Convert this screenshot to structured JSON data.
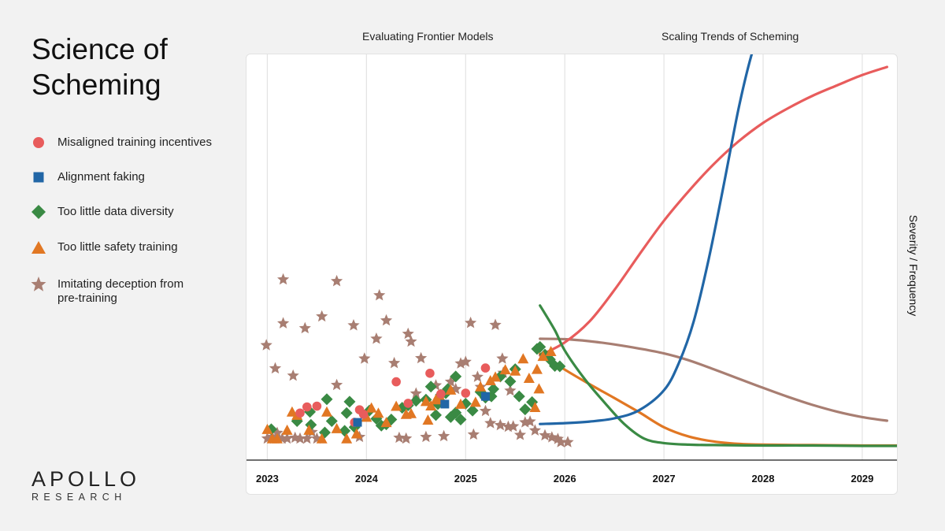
{
  "title": "Science of Scheming",
  "sections": {
    "left_title": "Evaluating Frontier Models",
    "right_title": "Scaling Trends of Scheming"
  },
  "logo": {
    "main": "APOLLO",
    "sub": "RESEARCH"
  },
  "legend": [
    {
      "label": "Misaligned training incentives",
      "shape": "circle",
      "color": "#e85c5c"
    },
    {
      "label": "Alignment faking",
      "shape": "square",
      "color": "#2166a6"
    },
    {
      "label": "Too little data diversity",
      "shape": "diamond",
      "color": "#3a8a44"
    },
    {
      "label": "Too little safety training",
      "shape": "triangle",
      "color": "#e17723"
    },
    {
      "label": "Imitating deception from pre-training",
      "shape": "star",
      "color": "#a87e72"
    }
  ],
  "chart_data": {
    "type": "scatter+line",
    "title": "",
    "xlabel": "",
    "ylabel": "Severity / Frequency",
    "xlim": [
      2022.79,
      2029.35
    ],
    "ylim": [
      0,
      100
    ],
    "grid": true,
    "x_ticks": [
      "2023",
      "2024",
      "2025",
      "2026",
      "2027",
      "2028",
      "2029"
    ],
    "scatter_series": [
      {
        "name": "Misaligned training incentives",
        "marker": "circle",
        "color": "#e85c5c",
        "points": [
          [
            2023.33,
            11.6
          ],
          [
            2023.4,
            13.1
          ],
          [
            2023.5,
            13.3
          ],
          [
            2023.88,
            9.3
          ],
          [
            2023.93,
            12.4
          ],
          [
            2023.97,
            11.3
          ],
          [
            2024.3,
            19.3
          ],
          [
            2024.42,
            14.0
          ],
          [
            2024.64,
            21.4
          ],
          [
            2024.75,
            16.3
          ],
          [
            2025.0,
            16.5
          ],
          [
            2025.2,
            22.7
          ]
        ]
      },
      {
        "name": "Alignment faking",
        "marker": "square",
        "color": "#2166a6",
        "points": [
          [
            2023.91,
            9.3
          ],
          [
            2024.79,
            13.8
          ],
          [
            2025.2,
            15.7
          ]
        ]
      },
      {
        "name": "Too little data diversity",
        "marker": "diamond",
        "color": "#3a8a44",
        "points": [
          [
            2023.04,
            7.6
          ],
          [
            2023.3,
            9.6
          ],
          [
            2023.43,
            11.9
          ],
          [
            2023.44,
            8.7
          ],
          [
            2023.58,
            6.8
          ],
          [
            2023.6,
            15.0
          ],
          [
            2023.65,
            9.6
          ],
          [
            2023.78,
            7.2
          ],
          [
            2023.8,
            11.6
          ],
          [
            2023.83,
            14.4
          ],
          [
            2023.88,
            8.1
          ],
          [
            2024.03,
            12.2
          ],
          [
            2024.1,
            10.2
          ],
          [
            2024.15,
            8.5
          ],
          [
            2024.2,
            8.8
          ],
          [
            2024.25,
            10.0
          ],
          [
            2024.36,
            12.9
          ],
          [
            2024.42,
            13.5
          ],
          [
            2024.5,
            14.6
          ],
          [
            2024.6,
            14.9
          ],
          [
            2024.65,
            18.1
          ],
          [
            2024.7,
            11.1
          ],
          [
            2024.72,
            13.8
          ],
          [
            2024.75,
            16.1
          ],
          [
            2024.8,
            16.5
          ],
          [
            2024.85,
            10.6
          ],
          [
            2024.9,
            11.7
          ],
          [
            2024.95,
            10.0
          ],
          [
            2025.0,
            13.9
          ],
          [
            2025.07,
            12.2
          ],
          [
            2025.15,
            16.8
          ],
          [
            2025.2,
            15.4
          ],
          [
            2025.26,
            15.7
          ],
          [
            2025.28,
            17.5
          ],
          [
            2025.35,
            20.6
          ],
          [
            2025.45,
            19.4
          ],
          [
            2025.54,
            15.7
          ],
          [
            2025.5,
            22.4
          ],
          [
            2025.6,
            12.5
          ],
          [
            2025.67,
            14.3
          ],
          [
            2025.72,
            27.4
          ],
          [
            2025.75,
            27.9
          ],
          [
            2025.8,
            26.0
          ],
          [
            2025.85,
            24.8
          ],
          [
            2025.9,
            23.2
          ],
          [
            2025.95,
            23.1
          ],
          [
            2024.9,
            20.6
          ],
          [
            2024.82,
            17.5
          ]
        ]
      },
      {
        "name": "Too little safety training",
        "marker": "triangle",
        "color": "#e17723",
        "points": [
          [
            2023.0,
            7.6
          ],
          [
            2023.05,
            5.3
          ],
          [
            2023.1,
            5.3
          ],
          [
            2023.2,
            7.4
          ],
          [
            2023.25,
            11.9
          ],
          [
            2023.3,
            11.1
          ],
          [
            2023.42,
            7.4
          ],
          [
            2023.55,
            5.3
          ],
          [
            2023.6,
            11.9
          ],
          [
            2023.7,
            7.8
          ],
          [
            2023.8,
            5.3
          ],
          [
            2023.9,
            6.5
          ],
          [
            2024.0,
            10.6
          ],
          [
            2024.05,
            12.9
          ],
          [
            2024.12,
            11.6
          ],
          [
            2024.2,
            9.3
          ],
          [
            2024.3,
            13.3
          ],
          [
            2024.4,
            11.3
          ],
          [
            2024.45,
            11.5
          ],
          [
            2024.6,
            14.5
          ],
          [
            2024.62,
            9.9
          ],
          [
            2024.65,
            13.4
          ],
          [
            2024.7,
            14.9
          ],
          [
            2024.75,
            15.3
          ],
          [
            2024.85,
            17.3
          ],
          [
            2024.95,
            13.8
          ],
          [
            2025.1,
            14.3
          ],
          [
            2025.15,
            18.1
          ],
          [
            2025.25,
            19.6
          ],
          [
            2025.3,
            20.5
          ],
          [
            2025.4,
            22.3
          ],
          [
            2025.5,
            22.0
          ],
          [
            2025.58,
            25.0
          ],
          [
            2025.64,
            20.2
          ],
          [
            2025.72,
            22.4
          ],
          [
            2025.78,
            25.6
          ],
          [
            2025.86,
            26.8
          ],
          [
            2025.74,
            17.6
          ],
          [
            2025.7,
            13.0
          ]
        ]
      },
      {
        "name": "Imitating deception from pre-training",
        "marker": "star",
        "color": "#a87e72",
        "points": [
          [
            2023.0,
            5.3
          ],
          [
            2023.05,
            5.7
          ],
          [
            2023.1,
            6.7
          ],
          [
            2023.15,
            5.3
          ],
          [
            2023.2,
            5.3
          ],
          [
            2023.28,
            5.5
          ],
          [
            2023.33,
            5.3
          ],
          [
            2023.4,
            5.3
          ],
          [
            2023.45,
            6.9
          ],
          [
            2023.5,
            5.3
          ],
          [
            2022.99,
            28.3
          ],
          [
            2023.08,
            22.6
          ],
          [
            2023.16,
            44.5
          ],
          [
            2023.16,
            33.7
          ],
          [
            2023.26,
            20.8
          ],
          [
            2023.38,
            32.5
          ],
          [
            2023.55,
            35.4
          ],
          [
            2023.7,
            44.1
          ],
          [
            2023.7,
            18.5
          ],
          [
            2023.87,
            33.2
          ],
          [
            2023.93,
            5.7
          ],
          [
            2023.98,
            25.0
          ],
          [
            2024.1,
            29.9
          ],
          [
            2024.13,
            40.6
          ],
          [
            2024.2,
            34.4
          ],
          [
            2024.28,
            23.9
          ],
          [
            2024.33,
            5.5
          ],
          [
            2024.4,
            5.3
          ],
          [
            2024.42,
            31.1
          ],
          [
            2024.45,
            29.2
          ],
          [
            2024.5,
            16.4
          ],
          [
            2024.55,
            25.1
          ],
          [
            2024.6,
            5.7
          ],
          [
            2024.7,
            18.4
          ],
          [
            2024.78,
            5.9
          ],
          [
            2024.85,
            19.3
          ],
          [
            2024.9,
            17.5
          ],
          [
            2024.95,
            23.8
          ],
          [
            2025.0,
            24.2
          ],
          [
            2025.05,
            33.8
          ],
          [
            2025.08,
            6.3
          ],
          [
            2025.15,
            18.0
          ],
          [
            2025.2,
            12.1
          ],
          [
            2025.25,
            9.1
          ],
          [
            2025.3,
            33.3
          ],
          [
            2025.35,
            8.6
          ],
          [
            2025.37,
            25.0
          ],
          [
            2025.43,
            8.2
          ],
          [
            2025.48,
            8.3
          ],
          [
            2025.55,
            6.2
          ],
          [
            2025.6,
            9.3
          ],
          [
            2025.65,
            9.5
          ],
          [
            2025.7,
            7.3
          ],
          [
            2025.8,
            6.1
          ],
          [
            2025.87,
            5.6
          ],
          [
            2025.93,
            5.2
          ],
          [
            2025.96,
            4.4
          ],
          [
            2026.03,
            4.4
          ],
          [
            2025.45,
            17.1
          ],
          [
            2025.38,
            21.5
          ],
          [
            2025.12,
            20.5
          ]
        ]
      }
    ],
    "line_series": [
      {
        "name": "Misaligned training incentives",
        "color": "#e85c5c",
        "points": [
          [
            2025.75,
            25.8
          ],
          [
            2026.0,
            29.0
          ],
          [
            2026.25,
            34.2
          ],
          [
            2026.5,
            41.9
          ],
          [
            2026.75,
            50.6
          ],
          [
            2027.0,
            59.0
          ],
          [
            2027.25,
            66.3
          ],
          [
            2027.5,
            72.9
          ],
          [
            2027.75,
            78.5
          ],
          [
            2028.0,
            83.1
          ],
          [
            2028.25,
            86.7
          ],
          [
            2028.5,
            89.8
          ],
          [
            2028.75,
            92.4
          ],
          [
            2029.0,
            94.9
          ],
          [
            2029.25,
            96.9
          ]
        ]
      },
      {
        "name": "Alignment faking",
        "color": "#2166a6",
        "points": [
          [
            2025.75,
            8.9
          ],
          [
            2026.0,
            9.1
          ],
          [
            2026.25,
            9.5
          ],
          [
            2026.5,
            10.3
          ],
          [
            2026.75,
            12.3
          ],
          [
            2027.0,
            17.2
          ],
          [
            2027.15,
            23.9
          ],
          [
            2027.3,
            34.2
          ],
          [
            2027.45,
            49.4
          ],
          [
            2027.6,
            67.4
          ],
          [
            2027.75,
            86.3
          ],
          [
            2027.88,
            99.6
          ],
          [
            2028.0,
            108.0
          ]
        ]
      },
      {
        "name": "Too little data diversity",
        "color": "#3a8a44",
        "points": [
          [
            2025.75,
            38.1
          ],
          [
            2025.9,
            32.0
          ],
          [
            2026.0,
            27.0
          ],
          [
            2026.2,
            20.0
          ],
          [
            2026.4,
            14.2
          ],
          [
            2026.6,
            8.9
          ],
          [
            2026.8,
            5.3
          ],
          [
            2027.0,
            4.2
          ],
          [
            2027.25,
            3.8
          ],
          [
            2027.5,
            3.7
          ],
          [
            2028.0,
            3.6
          ],
          [
            2028.5,
            3.6
          ],
          [
            2029.0,
            3.5
          ],
          [
            2029.35,
            3.5
          ]
        ]
      },
      {
        "name": "Too little safety training",
        "color": "#e17723",
        "points": [
          [
            2025.75,
            26.2
          ],
          [
            2026.0,
            22.3
          ],
          [
            2026.25,
            18.7
          ],
          [
            2026.5,
            15.3
          ],
          [
            2026.75,
            11.8
          ],
          [
            2027.0,
            8.1
          ],
          [
            2027.25,
            5.8
          ],
          [
            2027.5,
            4.6
          ],
          [
            2027.75,
            4.0
          ],
          [
            2028.0,
            3.8
          ],
          [
            2028.5,
            3.7
          ],
          [
            2029.0,
            3.6
          ],
          [
            2029.35,
            3.6
          ]
        ]
      },
      {
        "name": "Imitating deception from pre-training",
        "color": "#a87e72",
        "points": [
          [
            2025.75,
            29.9
          ],
          [
            2026.0,
            29.8
          ],
          [
            2026.25,
            29.3
          ],
          [
            2026.5,
            28.5
          ],
          [
            2026.75,
            27.5
          ],
          [
            2027.0,
            26.3
          ],
          [
            2027.25,
            24.6
          ],
          [
            2027.5,
            22.4
          ],
          [
            2027.75,
            20.1
          ],
          [
            2028.0,
            17.8
          ],
          [
            2028.25,
            15.6
          ],
          [
            2028.5,
            13.6
          ],
          [
            2028.75,
            11.9
          ],
          [
            2029.0,
            10.6
          ],
          [
            2029.25,
            9.7
          ]
        ]
      }
    ]
  }
}
